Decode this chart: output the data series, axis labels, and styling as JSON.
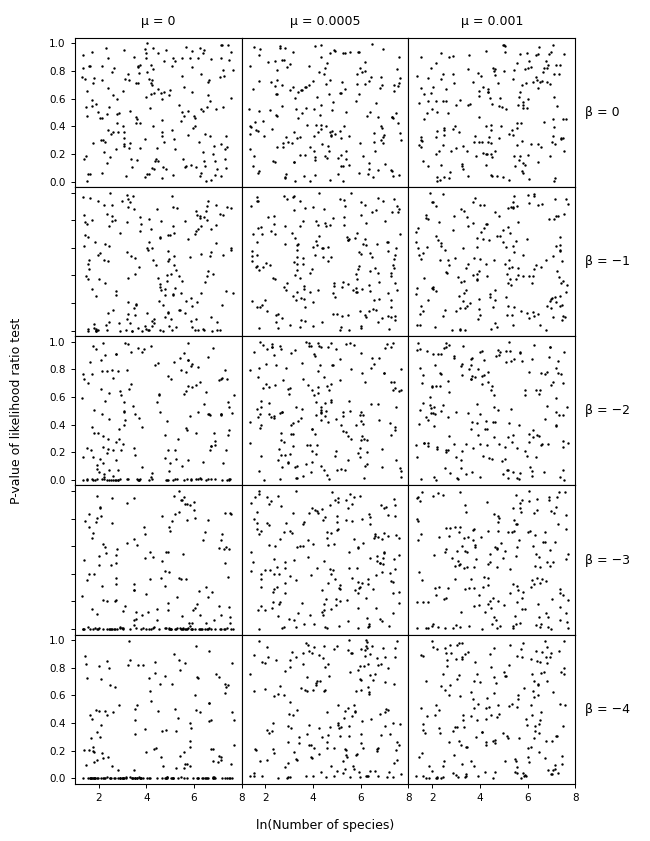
{
  "col_labels": [
    "μ = 0",
    "μ = 0.0005",
    "μ = 0.001"
  ],
  "row_labels": [
    "β = 0",
    "β = −1",
    "β = −2",
    "β = −3",
    "β = −4"
  ],
  "xlabel": "ln(Number of species)",
  "ylabel": "P-value of likelihood ratio test",
  "xlim": [
    1,
    8
  ],
  "ylim": [
    -0.04,
    1.04
  ],
  "yticks": [
    0.0,
    0.2,
    0.4,
    0.6,
    0.8,
    1.0
  ],
  "xticks": [
    2,
    4,
    6,
    8
  ],
  "n_rows": 5,
  "n_cols": 3,
  "marker_size": 3.0,
  "marker_color": "black",
  "n_points": 200,
  "beta_values": [
    0,
    -1,
    -2,
    -3,
    -4
  ],
  "mu_values": [
    0,
    0.0005,
    0.001
  ],
  "rows_with_ytick_labels": [
    0,
    2,
    4
  ]
}
